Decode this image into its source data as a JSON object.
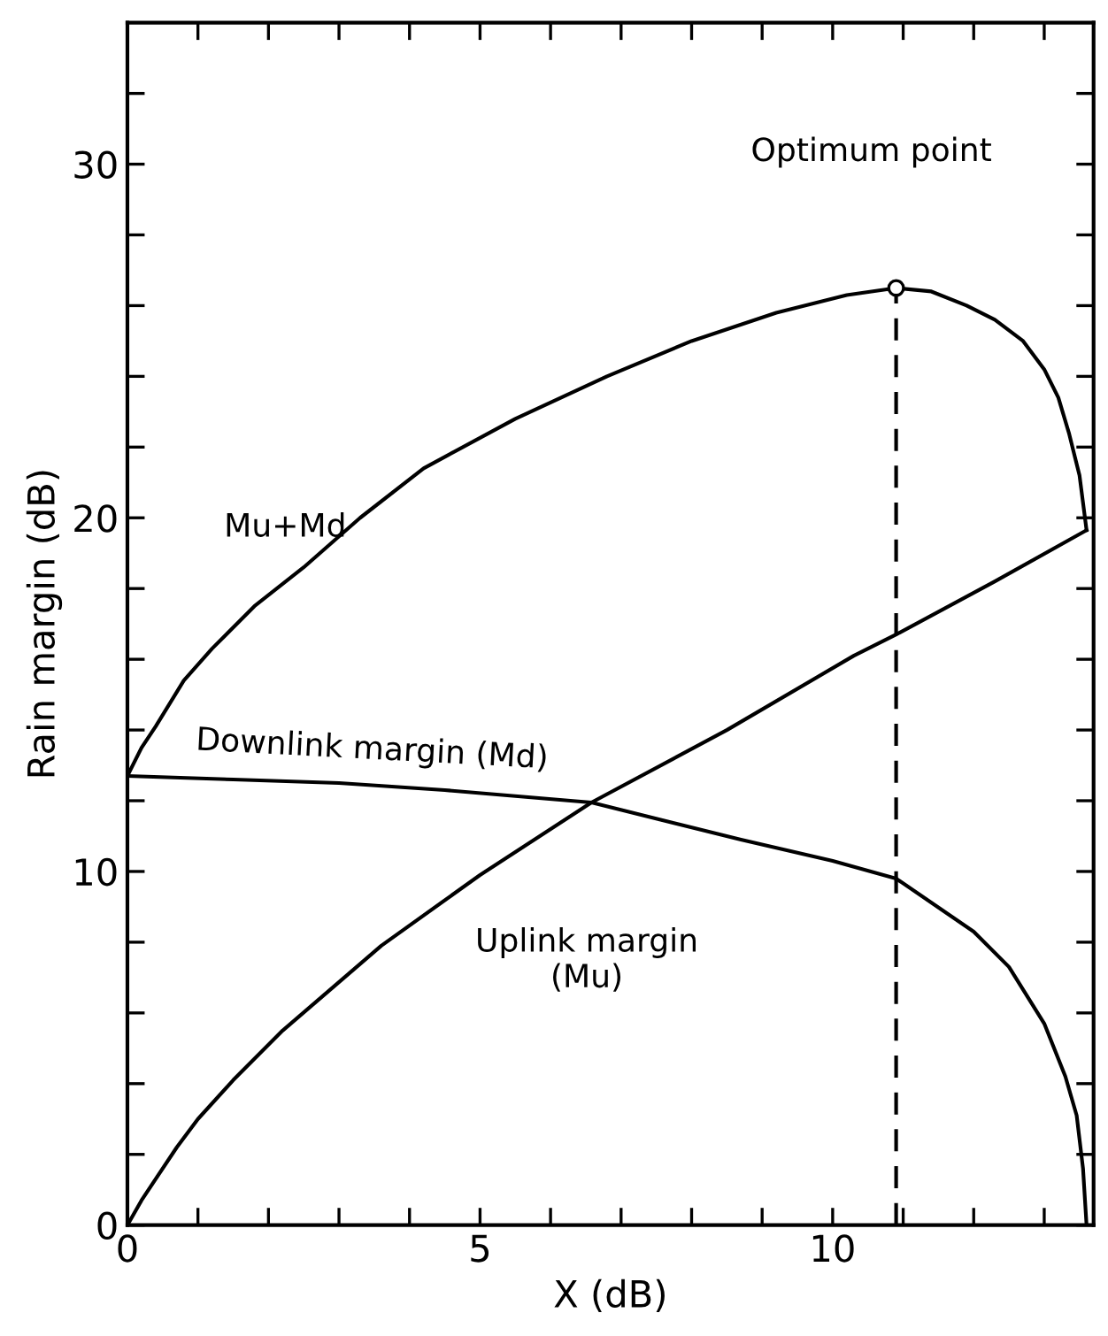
{
  "chart_data": {
    "type": "line",
    "xlabel": "X (dB)",
    "ylabel": "Rain margin (dB)",
    "xlim": [
      0,
      13.7
    ],
    "ylim": [
      0,
      34
    ],
    "xticks": [
      0,
      {
        "value": 1,
        "label": null
      },
      {
        "value": 2,
        "label": null
      },
      {
        "value": 3,
        "label": null
      },
      {
        "value": 4,
        "label": null
      },
      5,
      {
        "value": 6,
        "label": null
      },
      {
        "value": 7,
        "label": null
      },
      {
        "value": 8,
        "label": null
      },
      {
        "value": 9,
        "label": null
      },
      10,
      {
        "value": 11,
        "label": null
      },
      {
        "value": 12,
        "label": null
      },
      {
        "value": 13,
        "label": null
      }
    ],
    "yticks": [
      0,
      {
        "value": 2,
        "label": null
      },
      {
        "value": 4,
        "label": null
      },
      {
        "value": 6,
        "label": null
      },
      {
        "value": 8,
        "label": null
      },
      10,
      {
        "value": 12,
        "label": null
      },
      {
        "value": 14,
        "label": null
      },
      {
        "value": 16,
        "label": null
      },
      {
        "value": 18,
        "label": null
      },
      20,
      {
        "value": 22,
        "label": null
      },
      {
        "value": 24,
        "label": null
      },
      {
        "value": 26,
        "label": null
      },
      {
        "value": 28,
        "label": null
      },
      30,
      {
        "value": 32,
        "label": null
      }
    ],
    "grid": false,
    "legend": false,
    "marker": "none",
    "line_style": "solid",
    "series": [
      {
        "name": "Mu+Md",
        "color": "#000000",
        "x": [
          0,
          0.2,
          0.4,
          0.8,
          1.2,
          1.8,
          2.5,
          3.3,
          4.2,
          5.5,
          6.8,
          8,
          9.2,
          10.2,
          10.9,
          11.4,
          11.9,
          12.3,
          12.7,
          13.0,
          13.2,
          13.35,
          13.5,
          13.6
        ],
        "values": [
          12.7,
          13.5,
          14.1,
          15.4,
          16.3,
          17.5,
          18.6,
          20.0,
          21.4,
          22.8,
          24.0,
          25.0,
          25.8,
          26.3,
          26.5,
          26.4,
          26.0,
          25.6,
          25.0,
          24.2,
          23.4,
          22.4,
          21.2,
          19.65
        ]
      },
      {
        "name": "Downlink margin (Md)",
        "color": "#000000",
        "x": [
          0,
          1.5,
          3,
          4.5,
          6.58,
          8.7,
          10,
          10.9,
          12,
          12.5,
          13,
          13.3,
          13.46,
          13.55,
          13.6
        ],
        "values": [
          12.7,
          12.6,
          12.5,
          12.3,
          11.95,
          10.9,
          10.3,
          9.8,
          8.3,
          7.3,
          5.7,
          4.2,
          3.1,
          1.6,
          0
        ]
      },
      {
        "name": "Uplink margin\n(Mu)",
        "color": "#000000",
        "x": [
          0,
          0.2,
          0.4,
          0.7,
          1.0,
          1.5,
          2.2,
          3.6,
          5,
          6.58,
          8.5,
          10.3,
          10.9,
          12.3,
          13.6
        ],
        "values": [
          0,
          0.7,
          1.3,
          2.2,
          3.0,
          4.1,
          5.5,
          7.9,
          9.9,
          11.95,
          14.0,
          16.1,
          16.7,
          18.2,
          19.65
        ]
      },
      {
        "type": "line",
        "line_style": "dashed",
        "color": "#000000",
        "x": [
          10.9,
          10.9
        ],
        "values": [
          0,
          26.5
        ]
      },
      {
        "type": "scatter",
        "marker": "circle",
        "color": "#000000",
        "x": [
          10.9
        ],
        "values": [
          26.5
        ]
      }
    ],
    "annotations": [
      "Optimum point"
    ]
  }
}
